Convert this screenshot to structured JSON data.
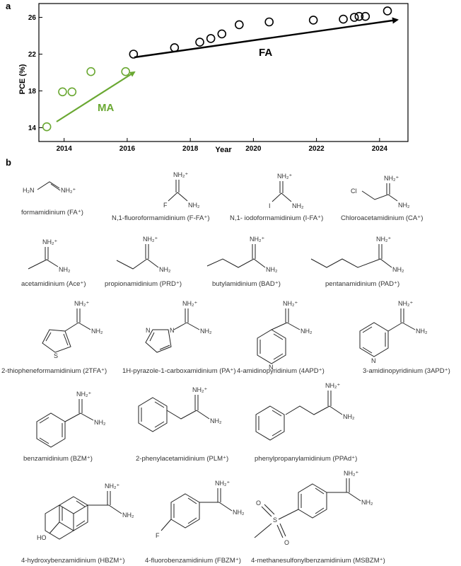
{
  "panel_a_label": "a",
  "panel_b_label": "b",
  "chart_data": {
    "type": "scatter",
    "xlabel": "Year",
    "ylabel": "PCE (%)",
    "xlim": [
      2013.2,
      2024.9
    ],
    "ylim": [
      12.5,
      27.5
    ],
    "xticks": [
      2014,
      2016,
      2018,
      2020,
      2022,
      2024
    ],
    "yticks": [
      14,
      18,
      22,
      26
    ],
    "grid": false,
    "series": [
      {
        "name": "MA",
        "color": "#6aa832",
        "x": [
          2013.45,
          2013.95,
          2014.25,
          2014.85,
          2015.95
        ],
        "y": [
          14.1,
          17.9,
          17.9,
          20.1,
          20.1
        ]
      },
      {
        "name": "FA",
        "color": "#000000",
        "x": [
          2016.2,
          2017.5,
          2018.3,
          2018.65,
          2019.0,
          2019.55,
          2020.5,
          2021.9,
          2022.85,
          2023.2,
          2023.35,
          2023.55,
          2024.25
        ],
        "y": [
          22.0,
          22.7,
          23.3,
          23.7,
          24.2,
          25.2,
          25.5,
          25.7,
          25.8,
          26.0,
          26.1,
          26.1,
          26.7
        ]
      }
    ],
    "annotations": [
      {
        "text": "MA",
        "color": "#6aa832"
      },
      {
        "text": "FA",
        "color": "#000000"
      }
    ]
  },
  "molecules": {
    "fa": "formamidinium (FA⁺)",
    "ffa": "N,1-fluoroformamidinium (F-FA⁺)",
    "ifa": "N,1- iodoformamidinium (I-FA⁺)",
    "ca": "Chloroacetamidinium (CA⁺)",
    "ace": "acetamidinium (Ace⁺)",
    "prd": "propionamidinium (PRD⁺)",
    "bad": "butylamidinium (BAD⁺)",
    "pad": "pentanamidinium  (PAD⁺)",
    "tfa": "2-thiopheneformamidinium (2TFA⁺)",
    "pa": "1H-pyrazole-1-carboxamidinium (PA⁺)",
    "apd4": "4-amidinopyridinium (4APD⁺)",
    "apd3": "3-amidinopyridinium (3APD⁺)",
    "bzm": "benzamidinium (BZM⁺)",
    "plm": "2-phenylacetamidinium (PLM⁺)",
    "ppad": "phenylpropanylamidinium (PPAd⁺)",
    "hbzm": "4-hydroxybenzamidinium (HBZM⁺)",
    "fbzm": "4-fluorobenzamidinium (FBZM⁺)",
    "msbzm": "4-methanesulfonylbenzamidinium (MSBZM⁺)"
  },
  "atoms": {
    "nh2plus": "NH₂⁺",
    "nh2": "NH₂",
    "h2n": "H₂N",
    "f": "F",
    "i": "I",
    "cl": "Cl",
    "s": "S",
    "n": "N",
    "o": "O",
    "ho": "HO"
  }
}
